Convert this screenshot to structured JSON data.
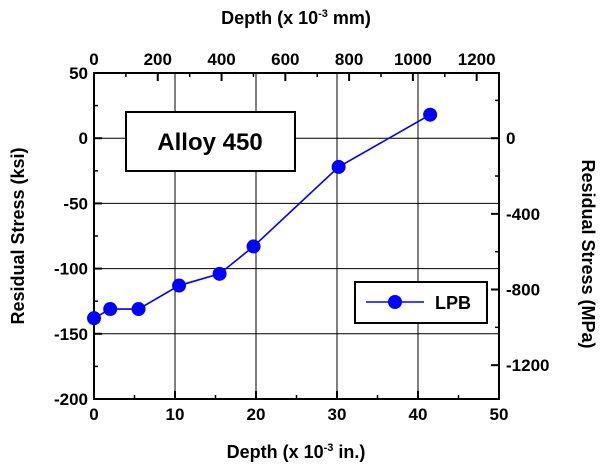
{
  "chart_data": {
    "type": "line",
    "title": "",
    "annotation": "Alloy 450",
    "x_bottom": {
      "label": "Depth (x 10",
      "label_exp": "-3",
      "label_end": " in.)",
      "ticks": [
        0,
        10,
        20,
        30,
        40,
        50
      ],
      "tick_labels": [
        "0",
        "10",
        "20",
        "30",
        "40",
        "50"
      ],
      "range": [
        0,
        50
      ]
    },
    "x_top": {
      "label": "Depth (x 10",
      "label_exp": "-3",
      "label_end": " mm)",
      "ticks": [
        0,
        200,
        400,
        600,
        800,
        1000,
        1200
      ],
      "tick_labels": [
        "0",
        "200",
        "400",
        "600",
        "800",
        "1000",
        "1200"
      ]
    },
    "y_left": {
      "label": "Residual Stress (ksi)",
      "ticks": [
        50,
        0,
        -50,
        -100,
        -150,
        -200
      ],
      "tick_labels": [
        "50",
        "0",
        "-50",
        "-100",
        "-150",
        "-200"
      ],
      "range": [
        -200,
        50
      ]
    },
    "y_right": {
      "label": "Residual Stress (MPa)",
      "ticks": [
        0,
        -400,
        -800,
        -1200
      ],
      "tick_labels": [
        "0",
        "-400",
        "-800",
        "-1200"
      ]
    },
    "grid": true,
    "legend_position": "lower-right",
    "series": [
      {
        "name": "LPB",
        "color": "#0000ff",
        "marker": "circle",
        "x": [
          0,
          2,
          5.5,
          10.5,
          15.5,
          19.7,
          30.2,
          41.5
        ],
        "y": [
          -138,
          -131,
          -131,
          -113,
          -104,
          -83,
          -22,
          18
        ]
      }
    ]
  }
}
